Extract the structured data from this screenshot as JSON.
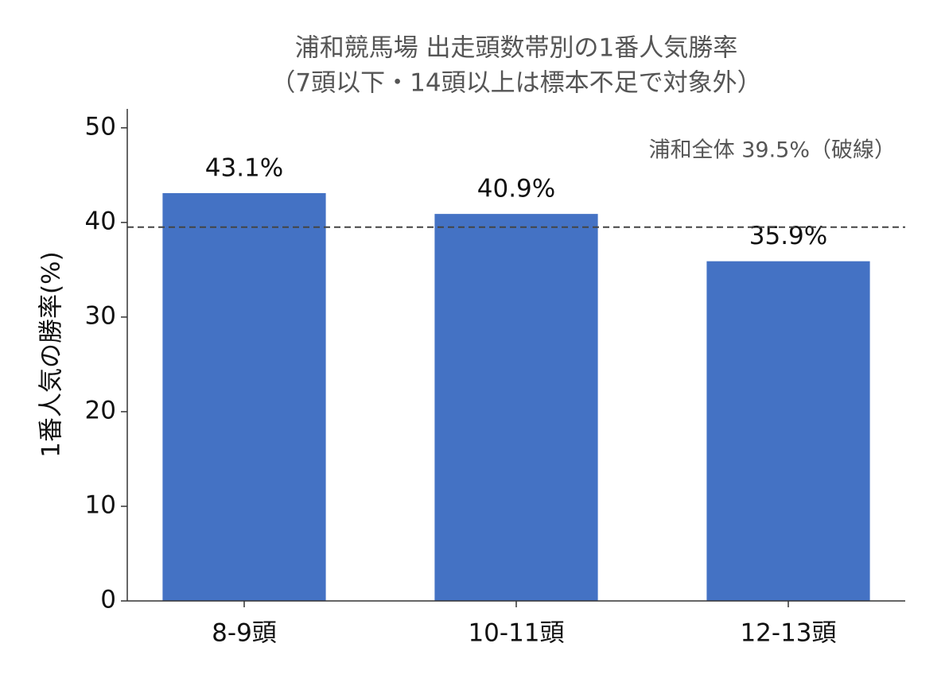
{
  "chart_data": {
    "type": "bar",
    "title": "浦和競馬場 出走頭数帯別の1番人気勝率",
    "subtitle": "（7頭以下・14頭以上は標本不足で対象外）",
    "y_label": "1番人気の勝率(%)",
    "categories": [
      "8-9頭",
      "10-11頭",
      "12-13頭"
    ],
    "values": [
      43.1,
      40.9,
      35.9
    ],
    "value_labels": [
      "43.1%",
      "40.9%",
      "35.9%"
    ],
    "color": "#4472c4",
    "ylim": [
      0,
      52
    ],
    "yticks": [
      0,
      10,
      20,
      30,
      40,
      50
    ],
    "grid": false,
    "reference_line": {
      "value": 39.5,
      "label": "浦和全体 39.5%（破線）",
      "color": "#444444"
    }
  }
}
